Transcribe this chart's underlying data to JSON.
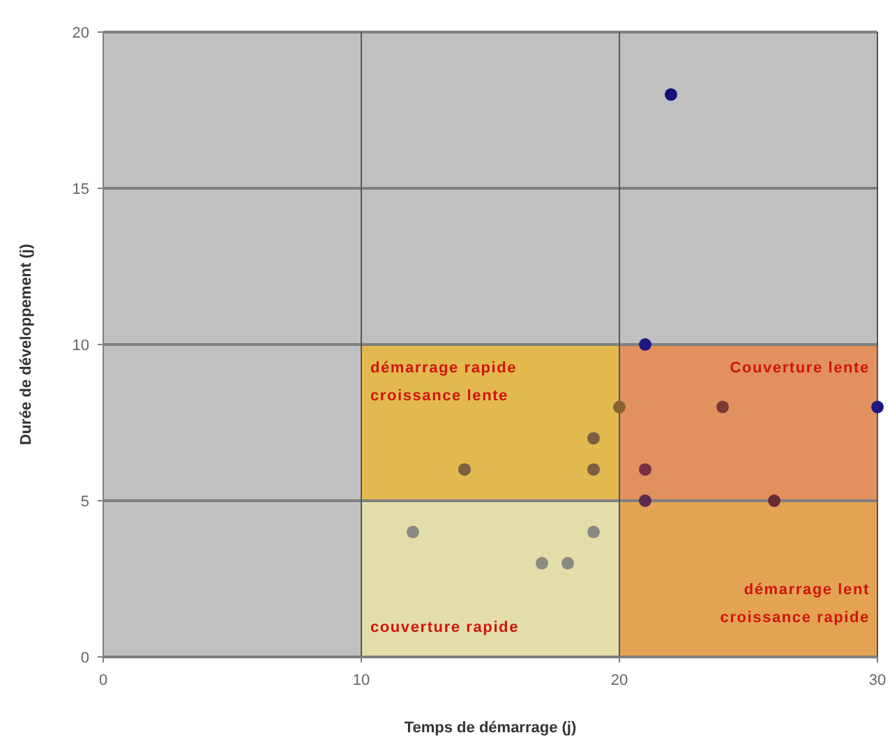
{
  "chart_data": {
    "type": "scatter",
    "xlabel": "Temps de démarrage (j)",
    "ylabel": "Durée de développement (j)",
    "xlim": [
      0,
      30
    ],
    "ylim": [
      0,
      20
    ],
    "xticks": [
      0,
      10,
      20,
      30
    ],
    "yticks": [
      0,
      5,
      10,
      15,
      20
    ],
    "grid": true,
    "marker": "circle",
    "series": [
      {
        "type": "bar",
        "x": [
          15,
          25
        ],
        "base": [
          0,
          0
        ],
        "values": [
          5,
          5
        ],
        "colors": [
          "#e3ddaa",
          "#e3a352"
        ]
      },
      {
        "type": "bar",
        "x": [
          15,
          25
        ],
        "base": [
          5,
          5
        ],
        "values": [
          5,
          5
        ],
        "colors": [
          "#e2b94f",
          "#e3905f"
        ]
      },
      {
        "x": [
          22,
          21,
          30,
          20,
          24,
          19,
          19,
          14,
          21,
          21,
          26,
          12,
          19,
          17,
          18
        ],
        "values": [
          18,
          10,
          8,
          8,
          8,
          7,
          6,
          6,
          6,
          5,
          5,
          4,
          4,
          3,
          3
        ],
        "colors": [
          "#14127a",
          "#1c1a80",
          "#1c1a80",
          "#8a6232",
          "#7a3a32",
          "#7a6040",
          "#7a6040",
          "#7a6040",
          "#7a3042",
          "#5a2a50",
          "#6a2a32",
          "#8a8a82",
          "#8a8a82",
          "#8a8a82",
          "#8a8a82"
        ]
      }
    ],
    "annotations": [
      "démarrage rapide\ncroissance lente",
      "Couverture lente",
      "couverture rapide",
      "démarrage lent\ncroissance rapide"
    ]
  }
}
